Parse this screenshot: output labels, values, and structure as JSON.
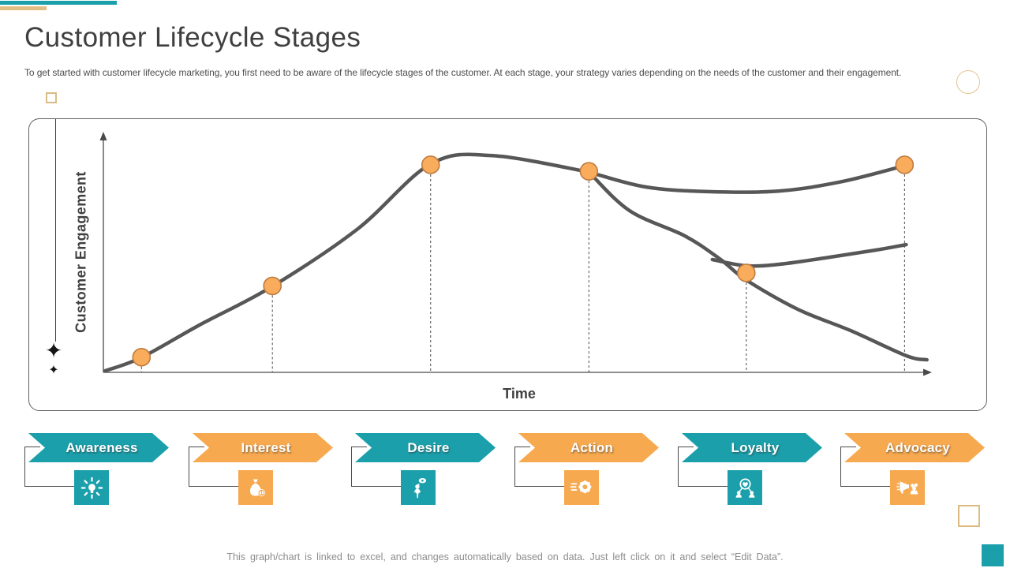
{
  "slide": {
    "title": "Customer Lifecycle Stages",
    "subtitle": "To get started with customer lifecycle marketing, you first need to be aware of the lifecycle stages of the customer. At each stage, your strategy varies depending on the needs of the customer and their engagement.",
    "footer_note": "This graph/chart is linked to excel, and changes automatically based on data. Just left click on it and select “Edit Data”."
  },
  "colors": {
    "teal": "#1BA0AB",
    "orange": "#F7A94F",
    "dot_fill": "#F9AC5C",
    "dot_stroke": "#BD7B3F",
    "curve": "#575757",
    "axis": "#4A4A4A",
    "tan_outline": "#DEBB80",
    "title_text": "#3F3F3F",
    "body_text": "#4D4D4D",
    "footer_text": "#8C8C8C"
  },
  "decor": {
    "sparkle_glyph": "✦",
    "top_bar_colors": [
      "#1BA0AB",
      "#E2BE85"
    ]
  },
  "stages": [
    {
      "label": "Awareness",
      "color": "teal",
      "icon": "bulb-rays-icon"
    },
    {
      "label": "Interest",
      "color": "orange",
      "icon": "money-bag-icon"
    },
    {
      "label": "Desire",
      "color": "teal",
      "icon": "person-thought-icon"
    },
    {
      "label": "Action",
      "color": "orange",
      "icon": "gear-icon"
    },
    {
      "label": "Loyalty",
      "color": "teal",
      "icon": "people-heart-icon"
    },
    {
      "label": "Advocacy",
      "color": "orange",
      "icon": "megaphone-icon"
    }
  ],
  "chart_data": {
    "type": "line",
    "title": "",
    "xlabel": "Time",
    "ylabel": "Customer Engagement",
    "x_axis": {
      "arrow": true,
      "ticks": false
    },
    "y_axis": {
      "arrow": true,
      "ticks": false
    },
    "ylim": [
      0,
      105
    ],
    "grid": false,
    "droplines_dashed": true,
    "stage_points": [
      {
        "stage": "Awareness",
        "x_frac": 0.046,
        "engagement": 7
      },
      {
        "stage": "Interest",
        "x_frac": 0.204,
        "engagement": 40
      },
      {
        "stage": "Desire",
        "x_frac": 0.395,
        "engagement": 96
      },
      {
        "stage": "Action",
        "x_frac": 0.586,
        "engagement": 93
      },
      {
        "stage": "Loyalty",
        "x_frac": 0.776,
        "engagement": 46
      },
      {
        "stage": "Advocacy",
        "x_frac": 0.967,
        "engagement": 96
      }
    ],
    "curves": [
      {
        "name": "engagement-rise",
        "points": [
          [
            0.002,
            0.7
          ],
          [
            0.046,
            6.9
          ],
          [
            0.116,
            21.9
          ],
          [
            0.204,
            39.8
          ],
          [
            0.307,
            66.4
          ],
          [
            0.395,
            96.4
          ],
          [
            0.469,
            100.3
          ],
          [
            0.586,
            92.7
          ]
        ]
      },
      {
        "name": "advocacy-branch-high",
        "points": [
          [
            0.586,
            92.7
          ],
          [
            0.654,
            85.8
          ],
          [
            0.73,
            83.6
          ],
          [
            0.816,
            83.9
          ],
          [
            0.892,
            88.3
          ],
          [
            0.967,
            95.6
          ]
        ]
      },
      {
        "name": "decline-branch-low",
        "points": [
          [
            0.586,
            92.7
          ],
          [
            0.635,
            74.8
          ],
          [
            0.702,
            63.1
          ],
          [
            0.745,
            52.2
          ],
          [
            0.776,
            42.7
          ],
          [
            0.838,
            29.2
          ],
          [
            0.902,
            19.3
          ],
          [
            0.969,
            7.7
          ],
          [
            0.994,
            5.8
          ]
        ]
      },
      {
        "name": "retention-branch-mid",
        "points": [
          [
            0.735,
            52.2
          ],
          [
            0.776,
            49.3
          ],
          [
            0.816,
            50.0
          ],
          [
            0.87,
            52.9
          ],
          [
            0.933,
            56.6
          ],
          [
            0.969,
            59.1
          ]
        ]
      }
    ]
  }
}
